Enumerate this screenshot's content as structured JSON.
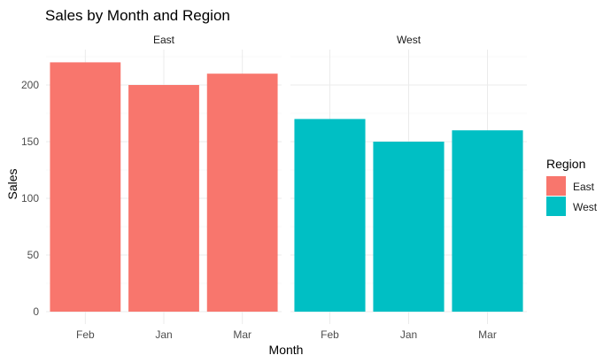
{
  "chart_data": {
    "type": "bar",
    "title": "Sales by Month and Region",
    "xlabel": "Month",
    "ylabel": "Sales",
    "ylim": [
      0,
      230
    ],
    "yticks": [
      0,
      50,
      100,
      150,
      200
    ],
    "categories": [
      "Feb",
      "Jan",
      "Mar"
    ],
    "facets": [
      {
        "name": "East",
        "series": "East",
        "values": [
          220,
          200,
          210
        ]
      },
      {
        "name": "West",
        "series": "West",
        "values": [
          170,
          150,
          160
        ]
      }
    ],
    "legend": {
      "title": "Region",
      "placement": "right",
      "entries": [
        {
          "name": "East",
          "color": "#F8766D"
        },
        {
          "name": "West",
          "color": "#00BFC4"
        }
      ]
    },
    "grid": true
  }
}
